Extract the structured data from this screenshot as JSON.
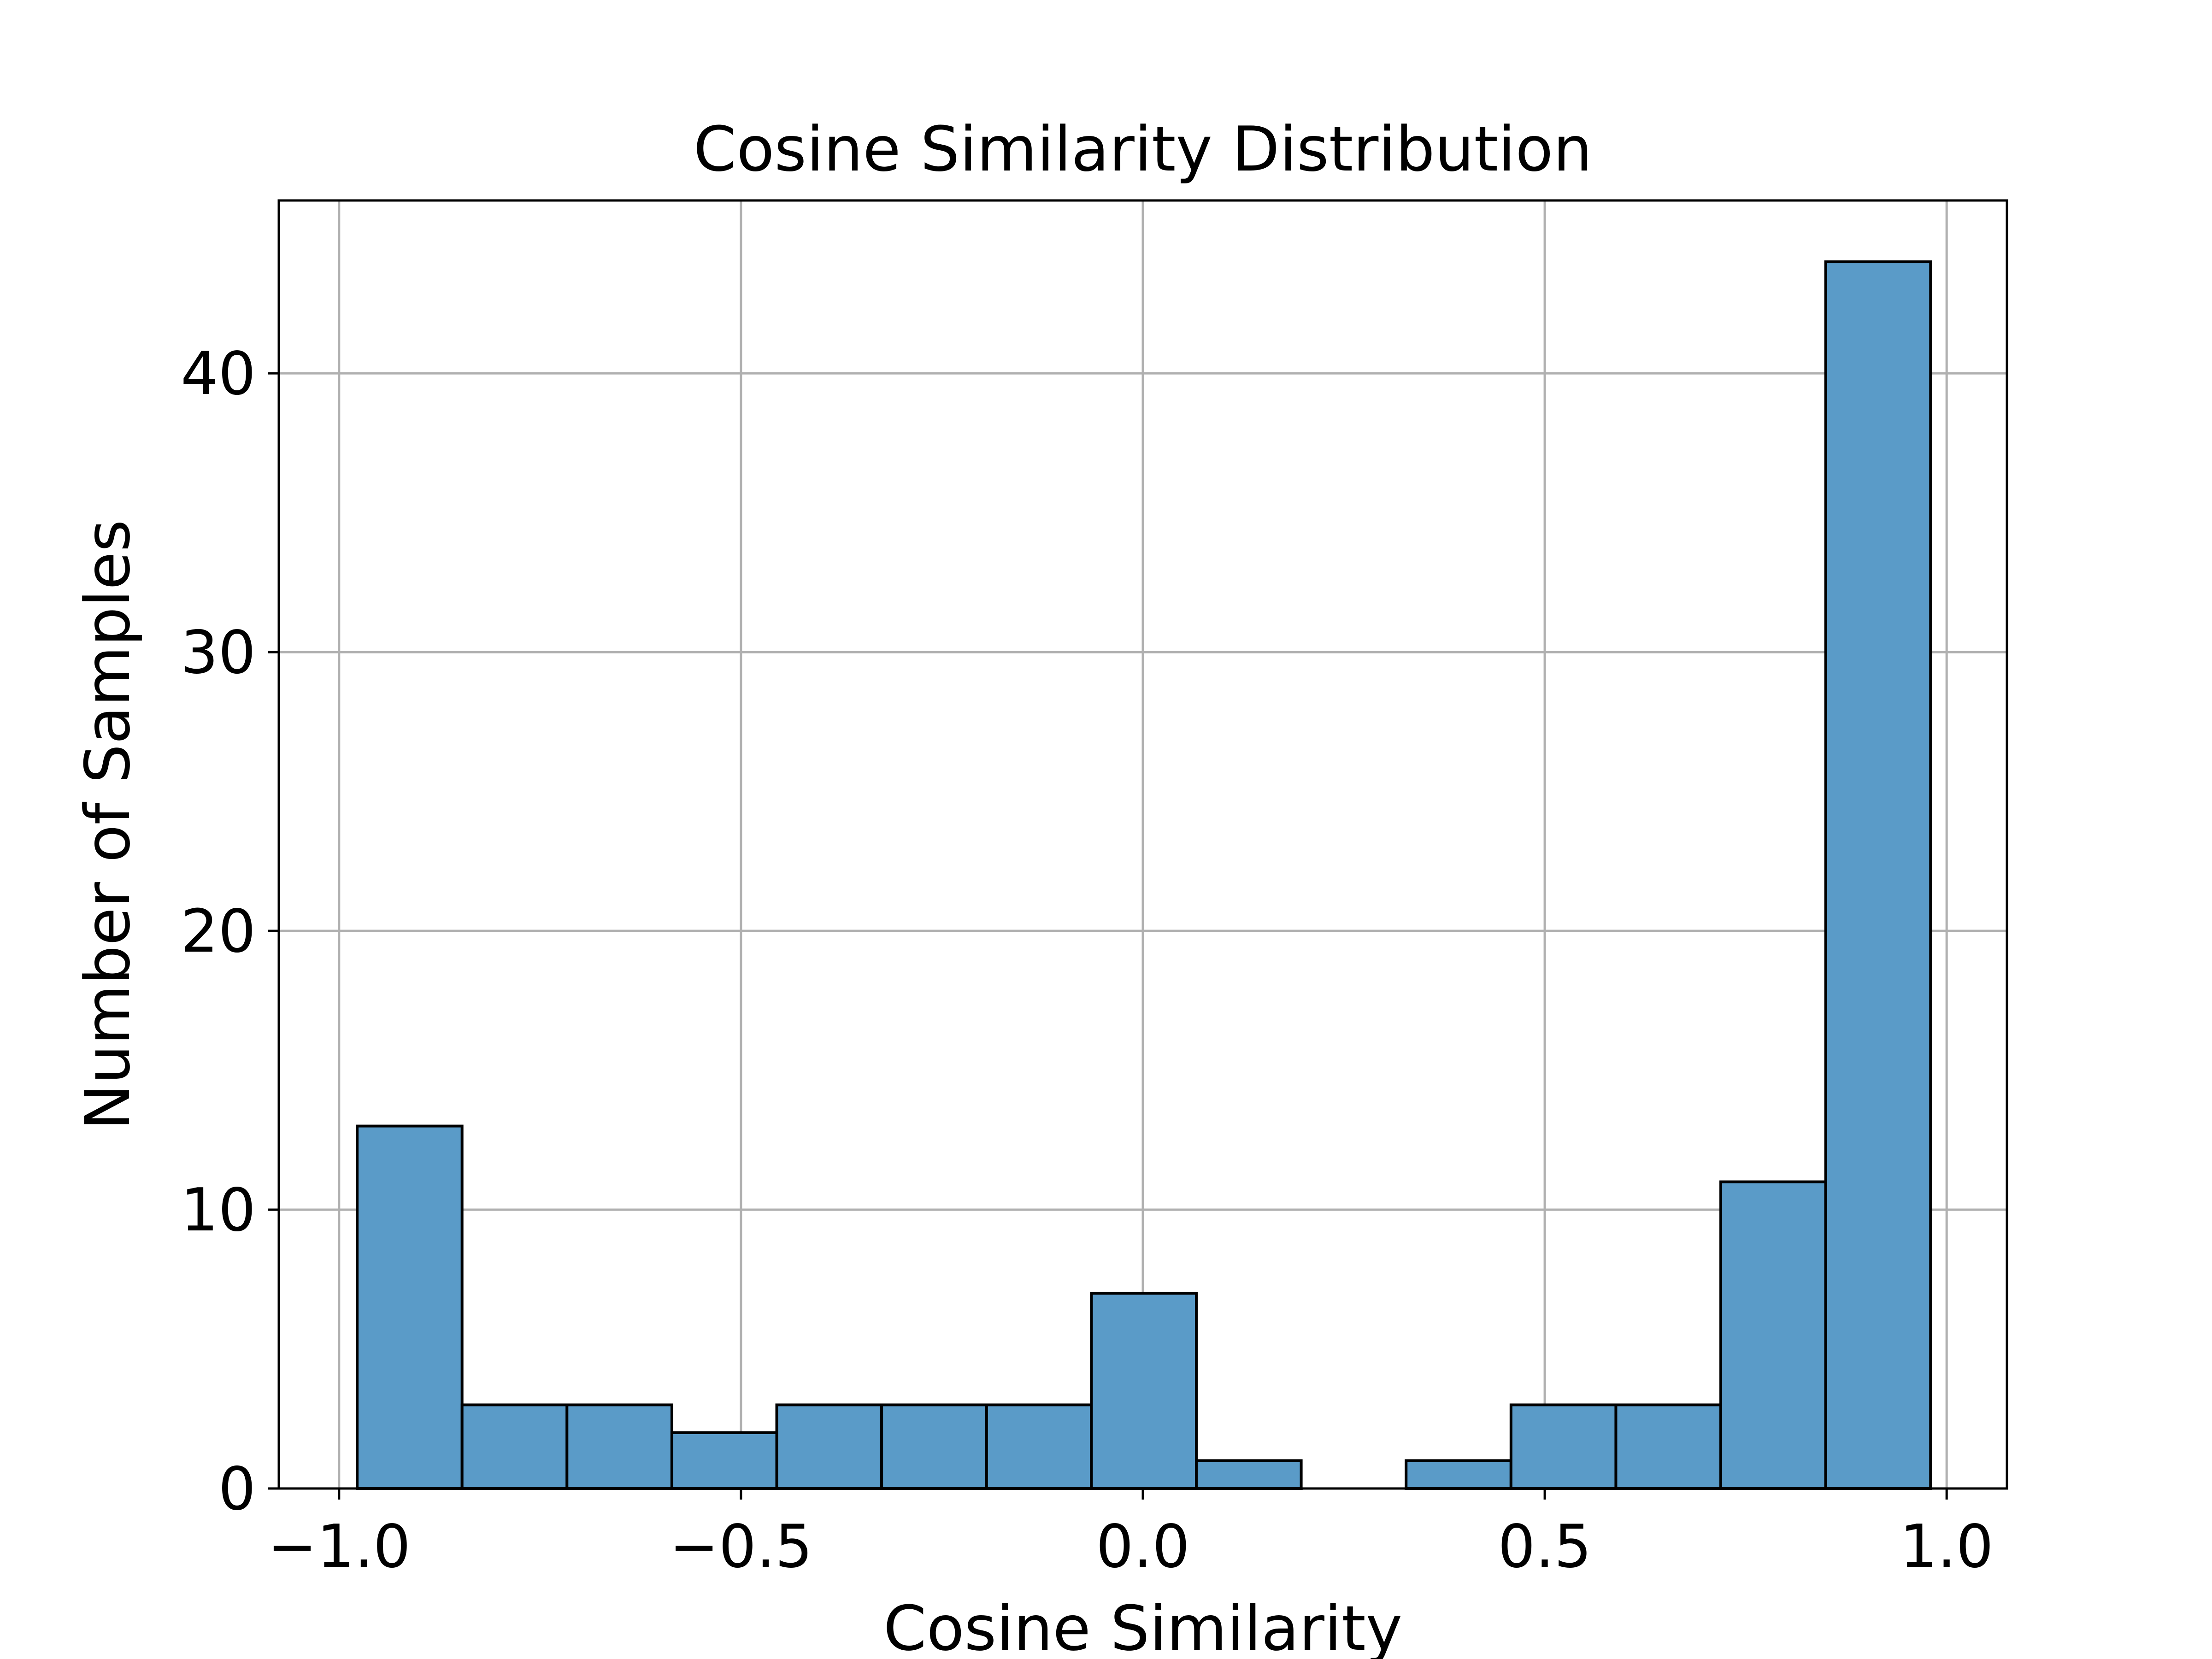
{
  "chart_data": {
    "type": "bar",
    "title": "Cosine Similarity Distribution",
    "xlabel": "Cosine Similarity",
    "ylabel": "Number of Samples",
    "bin_edges": [
      -0.9775,
      -0.847,
      -0.7165,
      -0.586,
      -0.4555,
      -0.325,
      -0.1945,
      -0.064,
      0.0665,
      0.197,
      0.3275,
      0.458,
      0.5885,
      0.719,
      0.8495,
      0.98
    ],
    "counts": [
      13,
      3,
      3,
      2,
      3,
      3,
      3,
      7,
      1,
      0,
      1,
      3,
      3,
      11,
      44
    ],
    "xlim": [
      -1.075,
      1.075
    ],
    "ylim": [
      0,
      46.2
    ],
    "x_ticks": [
      -1.0,
      -0.5,
      0.0,
      0.5,
      1.0
    ],
    "x_tick_labels": [
      "−1.0",
      "−0.5",
      "0.0",
      "0.5",
      "1.0"
    ],
    "y_ticks": [
      0,
      10,
      20,
      30,
      40
    ],
    "y_tick_labels": [
      "0",
      "10",
      "20",
      "30",
      "40"
    ],
    "grid": true,
    "bar_color": "#5a9bc8",
    "edge_color": "#000000",
    "grid_color": "#b0b0b0"
  }
}
